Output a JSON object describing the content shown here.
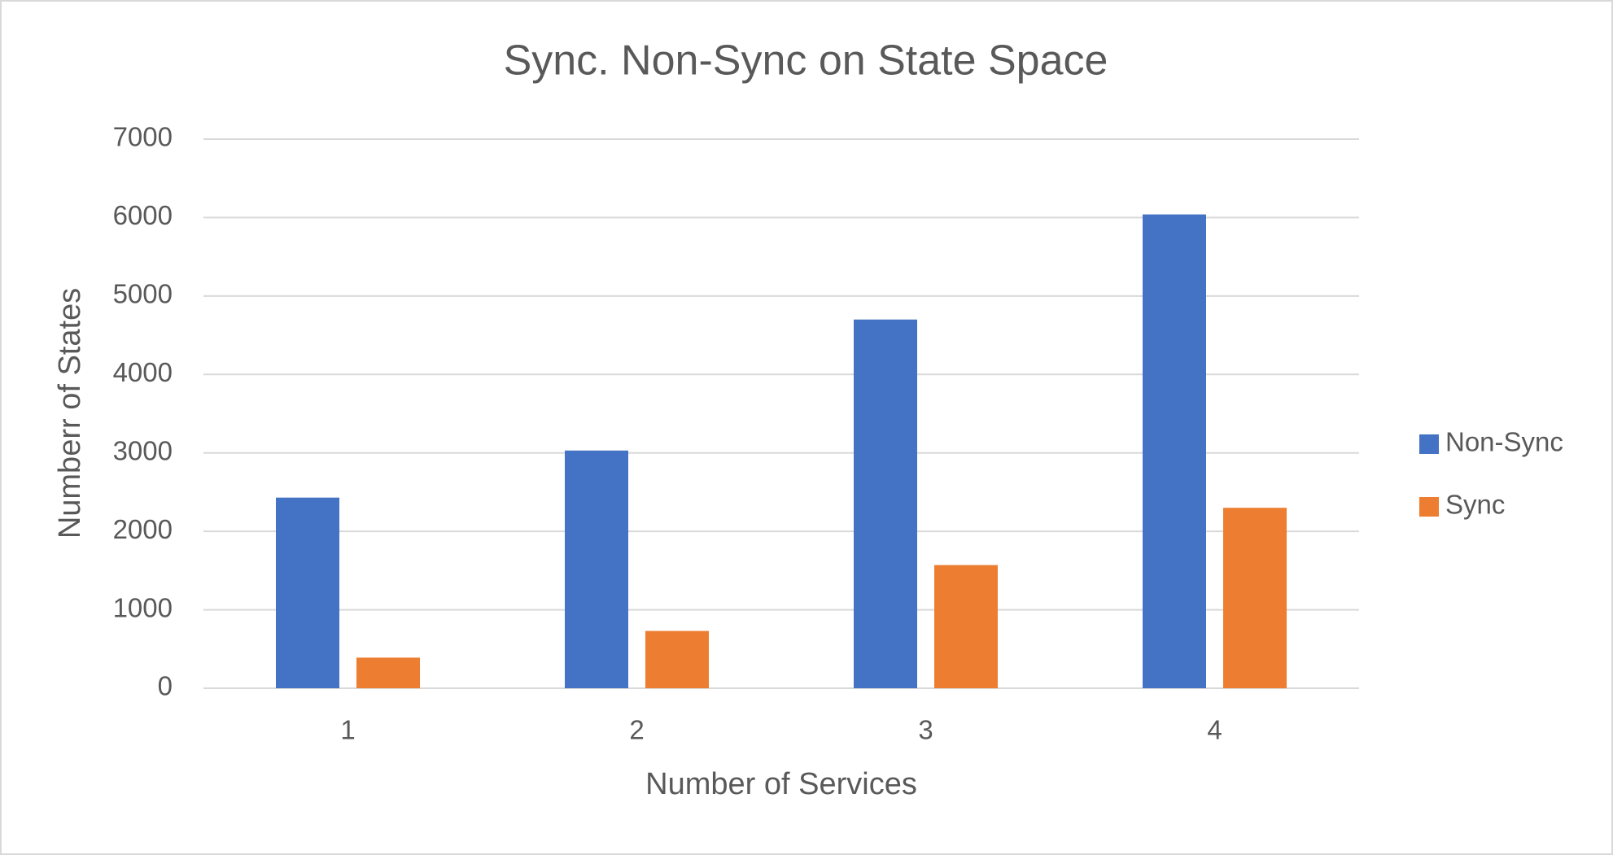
{
  "chart_data": {
    "type": "bar",
    "title": "Sync. Non-Sync on State Space",
    "x_label": "Number of Services",
    "y_label": "Numberr of States",
    "categories": [
      "1",
      "2",
      "3",
      "4"
    ],
    "series": [
      {
        "name": "Non-Sync",
        "color": "#4472c4",
        "values": [
          2430,
          3030,
          4700,
          6040
        ]
      },
      {
        "name": "Sync",
        "color": "#ed7d31",
        "values": [
          390,
          730,
          1570,
          2300
        ]
      }
    ],
    "ylim": [
      0,
      7000
    ],
    "yticks": [
      0,
      1000,
      2000,
      3000,
      4000,
      5000,
      6000,
      7000
    ],
    "grid": true,
    "legend": "right"
  }
}
